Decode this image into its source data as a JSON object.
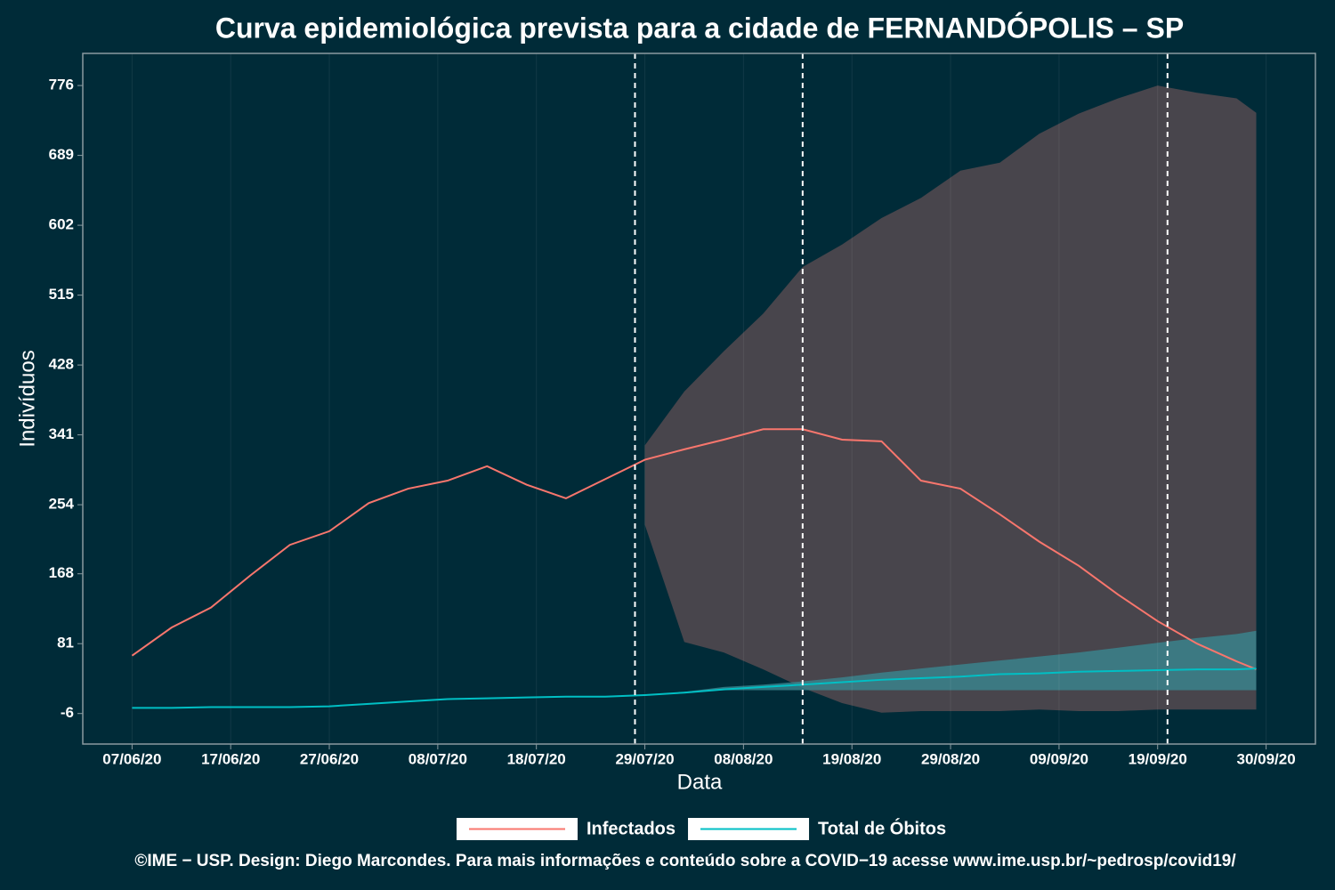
{
  "chart_data": {
    "type": "line",
    "title": "Curva epidemiológica prevista para a cidade de FERNANDÓPOLIS – SP",
    "x_label": "Data",
    "y_label": "Indivíduos",
    "caption": "©IME − USP. Design: Diego Marcondes. Para mais informações e conteúdo sobre a COVID−19 acesse www.ime.usp.br/~pedrosp/covid19/",
    "x": [
      "07/06/20",
      "11/06/20",
      "15/06/20",
      "19/06/20",
      "23/06/20",
      "27/06/20",
      "01/07/20",
      "05/07/20",
      "09/07/20",
      "13/07/20",
      "17/07/20",
      "21/07/20",
      "25/07/20",
      "29/07/20",
      "02/08/20",
      "06/08/20",
      "10/08/20",
      "14/08/20",
      "18/08/20",
      "22/08/20",
      "26/08/20",
      "30/08/20",
      "03/09/20",
      "07/09/20",
      "11/09/20",
      "15/09/20",
      "19/09/20",
      "23/09/20",
      "27/09/20",
      "29/09/20"
    ],
    "series": [
      {
        "name": "Infectados",
        "color": "#f8766d",
        "band_color": "#48454c",
        "values": [
          66,
          101,
          126,
          166,
          204,
          221,
          256,
          274,
          284,
          302,
          279,
          262,
          286,
          310,
          323,
          335,
          348,
          348,
          335,
          333,
          284,
          274,
          242,
          208,
          178,
          142,
          109,
          81,
          59,
          49
        ],
        "lower": [
          null,
          null,
          null,
          null,
          null,
          null,
          null,
          null,
          null,
          null,
          null,
          null,
          null,
          229,
          83,
          70,
          49,
          26,
          7,
          -5,
          -3,
          -3,
          -3,
          -1,
          -3,
          -3,
          -1,
          -1,
          -1,
          -1
        ],
        "upper": [
          null,
          null,
          null,
          null,
          null,
          null,
          null,
          null,
          null,
          null,
          null,
          null,
          null,
          328,
          395,
          445,
          492,
          550,
          578,
          611,
          636,
          670,
          680,
          716,
          741,
          760,
          776,
          767,
          760,
          742
        ]
      },
      {
        "name": "Total de Óbitos",
        "color": "#00bfc4",
        "band_color": "#3a8690",
        "values": [
          1,
          1,
          2,
          2,
          2,
          3,
          6,
          9,
          12,
          13,
          14,
          15,
          15,
          17,
          20,
          24,
          27,
          30,
          33,
          36,
          38,
          40,
          43,
          44,
          46,
          47,
          48,
          49,
          49,
          50
        ],
        "lower": [
          null,
          null,
          null,
          null,
          null,
          null,
          null,
          null,
          null,
          null,
          null,
          null,
          null,
          17,
          20,
          23,
          23,
          23,
          23,
          23,
          23,
          23,
          23,
          23,
          23,
          23,
          23,
          23,
          23,
          23
        ],
        "upper": [
          null,
          null,
          null,
          null,
          null,
          null,
          null,
          null,
          null,
          null,
          null,
          null,
          null,
          17,
          21,
          27,
          30,
          34,
          39,
          45,
          50,
          55,
          60,
          65,
          70,
          76,
          82,
          88,
          93,
          97
        ]
      }
    ],
    "vlines": [
      "28/07/20",
      "14/08/20",
      "20/09/20"
    ],
    "xlim": [
      "02/06/20",
      "05/10/20"
    ],
    "xticks": [
      "07/06/20",
      "17/06/20",
      "27/06/20",
      "08/07/20",
      "18/07/20",
      "29/07/20",
      "08/08/20",
      "19/08/20",
      "29/08/20",
      "09/09/20",
      "19/09/20",
      "30/09/20"
    ],
    "ylim": [
      -44,
      816
    ],
    "yticks": [
      -6,
      81,
      168,
      254,
      341,
      428,
      515,
      602,
      689,
      776
    ],
    "grid": true
  }
}
